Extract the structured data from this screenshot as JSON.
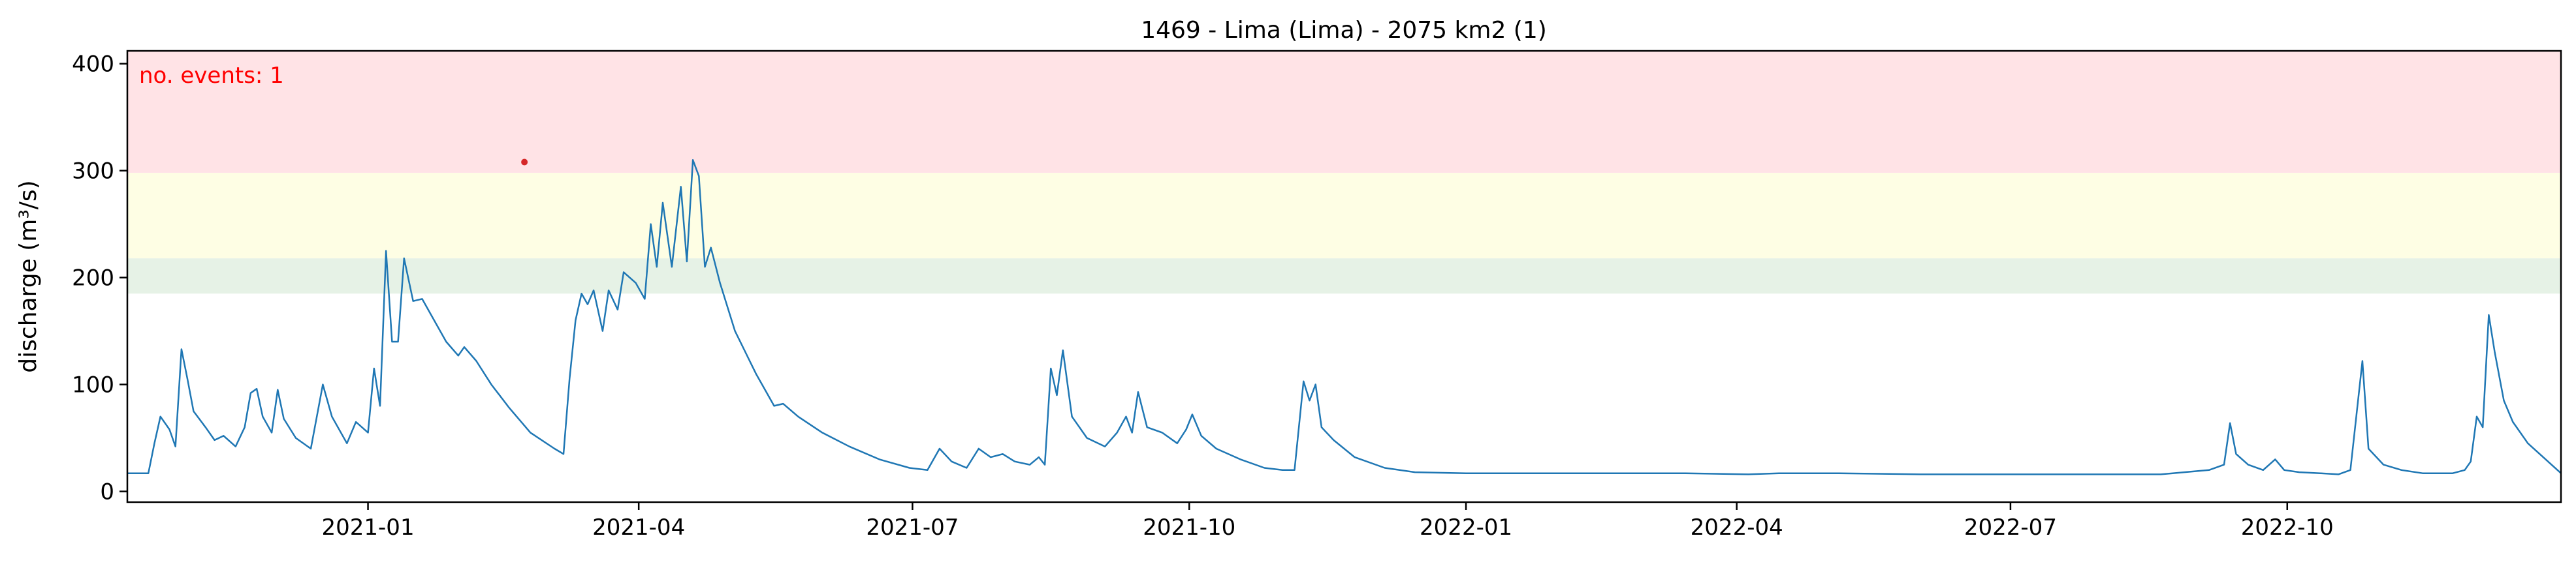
{
  "chart_data": {
    "type": "line",
    "title": "1469 - Lima (Lima) - 2075 km2 (1)",
    "xlabel": "",
    "ylabel": "discharge (m³/s)",
    "xlim": [
      "2020-10-13",
      "2022-12-31"
    ],
    "ylim": [
      -10,
      412
    ],
    "x_ticks": [
      {
        "date": "2021-01-01",
        "label": "2021-01"
      },
      {
        "date": "2021-04-01",
        "label": "2021-04"
      },
      {
        "date": "2021-07-01",
        "label": "2021-07"
      },
      {
        "date": "2021-10-01",
        "label": "2021-10"
      },
      {
        "date": "2022-01-01",
        "label": "2022-01"
      },
      {
        "date": "2022-04-01",
        "label": "2022-04"
      },
      {
        "date": "2022-07-01",
        "label": "2022-07"
      },
      {
        "date": "2022-10-01",
        "label": "2022-10"
      }
    ],
    "y_ticks": [
      0,
      100,
      200,
      300,
      400
    ],
    "grid": false,
    "threshold_bands": [
      {
        "from": 185,
        "to": 218,
        "color": "#e6f2e6"
      },
      {
        "from": 218,
        "to": 298,
        "color": "#fefee4"
      },
      {
        "from": 298,
        "to": 412,
        "color": "#ffe3e6"
      }
    ],
    "annotation": {
      "text": "no. events: 1",
      "color": "#ff0000"
    },
    "events": [
      {
        "date": "2021-02-22",
        "value": 308,
        "color": "#d62728"
      }
    ],
    "series": [
      {
        "color": "#1f77b4",
        "points": [
          [
            "2020-10-13",
            17
          ],
          [
            "2020-10-20",
            17
          ],
          [
            "2020-10-22",
            45
          ],
          [
            "2020-10-24",
            70
          ],
          [
            "2020-10-27",
            58
          ],
          [
            "2020-10-29",
            42
          ],
          [
            "2020-10-31",
            133
          ],
          [
            "2020-11-02",
            105
          ],
          [
            "2020-11-04",
            75
          ],
          [
            "2020-11-08",
            60
          ],
          [
            "2020-11-11",
            48
          ],
          [
            "2020-11-14",
            52
          ],
          [
            "2020-11-18",
            42
          ],
          [
            "2020-11-21",
            60
          ],
          [
            "2020-11-23",
            92
          ],
          [
            "2020-11-25",
            96
          ],
          [
            "2020-11-27",
            70
          ],
          [
            "2020-11-30",
            55
          ],
          [
            "2020-12-02",
            95
          ],
          [
            "2020-12-04",
            68
          ],
          [
            "2020-12-08",
            50
          ],
          [
            "2020-12-13",
            40
          ],
          [
            "2020-12-17",
            100
          ],
          [
            "2020-12-20",
            70
          ],
          [
            "2020-12-25",
            45
          ],
          [
            "2020-12-28",
            65
          ],
          [
            "2021-01-01",
            55
          ],
          [
            "2021-01-03",
            115
          ],
          [
            "2021-01-05",
            80
          ],
          [
            "2021-01-07",
            225
          ],
          [
            "2021-01-09",
            140
          ],
          [
            "2021-01-11",
            140
          ],
          [
            "2021-01-13",
            218
          ],
          [
            "2021-01-16",
            178
          ],
          [
            "2021-01-19",
            180
          ],
          [
            "2021-01-22",
            165
          ],
          [
            "2021-01-27",
            140
          ],
          [
            "2021-01-31",
            127
          ],
          [
            "2021-02-02",
            135
          ],
          [
            "2021-02-06",
            122
          ],
          [
            "2021-02-11",
            100
          ],
          [
            "2021-02-17",
            78
          ],
          [
            "2021-02-24",
            55
          ],
          [
            "2021-03-04",
            40
          ],
          [
            "2021-03-07",
            35
          ],
          [
            "2021-03-09",
            105
          ],
          [
            "2021-03-11",
            160
          ],
          [
            "2021-03-13",
            185
          ],
          [
            "2021-03-15",
            175
          ],
          [
            "2021-03-17",
            188
          ],
          [
            "2021-03-20",
            150
          ],
          [
            "2021-03-22",
            188
          ],
          [
            "2021-03-25",
            170
          ],
          [
            "2021-03-27",
            205
          ],
          [
            "2021-03-31",
            195
          ],
          [
            "2021-04-03",
            180
          ],
          [
            "2021-04-05",
            250
          ],
          [
            "2021-04-07",
            210
          ],
          [
            "2021-04-09",
            270
          ],
          [
            "2021-04-12",
            210
          ],
          [
            "2021-04-15",
            285
          ],
          [
            "2021-04-17",
            215
          ],
          [
            "2021-04-19",
            310
          ],
          [
            "2021-04-21",
            295
          ],
          [
            "2021-04-23",
            210
          ],
          [
            "2021-04-25",
            228
          ],
          [
            "2021-04-28",
            195
          ],
          [
            "2021-05-03",
            150
          ],
          [
            "2021-05-10",
            110
          ],
          [
            "2021-05-14",
            90
          ],
          [
            "2021-05-16",
            80
          ],
          [
            "2021-05-19",
            82
          ],
          [
            "2021-05-24",
            70
          ],
          [
            "2021-06-01",
            55
          ],
          [
            "2021-06-10",
            42
          ],
          [
            "2021-06-20",
            30
          ],
          [
            "2021-06-30",
            22
          ],
          [
            "2021-07-06",
            20
          ],
          [
            "2021-07-10",
            40
          ],
          [
            "2021-07-14",
            28
          ],
          [
            "2021-07-19",
            22
          ],
          [
            "2021-07-23",
            40
          ],
          [
            "2021-07-27",
            32
          ],
          [
            "2021-07-31",
            35
          ],
          [
            "2021-08-04",
            28
          ],
          [
            "2021-08-09",
            25
          ],
          [
            "2021-08-12",
            32
          ],
          [
            "2021-08-14",
            25
          ],
          [
            "2021-08-16",
            115
          ],
          [
            "2021-08-18",
            90
          ],
          [
            "2021-08-20",
            132
          ],
          [
            "2021-08-23",
            70
          ],
          [
            "2021-08-28",
            50
          ],
          [
            "2021-09-03",
            42
          ],
          [
            "2021-09-07",
            55
          ],
          [
            "2021-09-10",
            70
          ],
          [
            "2021-09-12",
            55
          ],
          [
            "2021-09-14",
            93
          ],
          [
            "2021-09-17",
            60
          ],
          [
            "2021-09-22",
            55
          ],
          [
            "2021-09-27",
            45
          ],
          [
            "2021-09-30",
            58
          ],
          [
            "2021-10-02",
            72
          ],
          [
            "2021-10-05",
            52
          ],
          [
            "2021-10-10",
            40
          ],
          [
            "2021-10-18",
            30
          ],
          [
            "2021-10-26",
            22
          ],
          [
            "2021-11-01",
            20
          ],
          [
            "2021-11-05",
            20
          ],
          [
            "2021-11-08",
            103
          ],
          [
            "2021-11-10",
            85
          ],
          [
            "2021-11-12",
            100
          ],
          [
            "2021-11-14",
            60
          ],
          [
            "2021-11-18",
            48
          ],
          [
            "2021-11-25",
            32
          ],
          [
            "2021-12-05",
            22
          ],
          [
            "2021-12-15",
            18
          ],
          [
            "2022-01-01",
            17
          ],
          [
            "2022-02-15",
            17
          ],
          [
            "2022-03-15",
            17
          ],
          [
            "2022-04-05",
            16
          ],
          [
            "2022-04-15",
            17
          ],
          [
            "2022-05-05",
            17
          ],
          [
            "2022-06-01",
            16
          ],
          [
            "2022-06-25",
            16
          ],
          [
            "2022-07-20",
            16
          ],
          [
            "2022-08-20",
            16
          ],
          [
            "2022-09-05",
            20
          ],
          [
            "2022-09-10",
            25
          ],
          [
            "2022-09-12",
            64
          ],
          [
            "2022-09-14",
            35
          ],
          [
            "2022-09-18",
            25
          ],
          [
            "2022-09-23",
            20
          ],
          [
            "2022-09-27",
            30
          ],
          [
            "2022-09-30",
            20
          ],
          [
            "2022-10-05",
            18
          ],
          [
            "2022-10-12",
            17
          ],
          [
            "2022-10-18",
            16
          ],
          [
            "2022-10-22",
            20
          ],
          [
            "2022-10-26",
            122
          ],
          [
            "2022-10-28",
            40
          ],
          [
            "2022-11-02",
            25
          ],
          [
            "2022-11-08",
            20
          ],
          [
            "2022-11-15",
            17
          ],
          [
            "2022-11-25",
            17
          ],
          [
            "2022-11-29",
            20
          ],
          [
            "2022-12-01",
            28
          ],
          [
            "2022-12-03",
            70
          ],
          [
            "2022-12-05",
            60
          ],
          [
            "2022-12-07",
            165
          ],
          [
            "2022-12-09",
            130
          ],
          [
            "2022-12-12",
            85
          ],
          [
            "2022-12-15",
            65
          ],
          [
            "2022-12-20",
            45
          ],
          [
            "2022-12-31",
            17
          ]
        ]
      }
    ]
  }
}
